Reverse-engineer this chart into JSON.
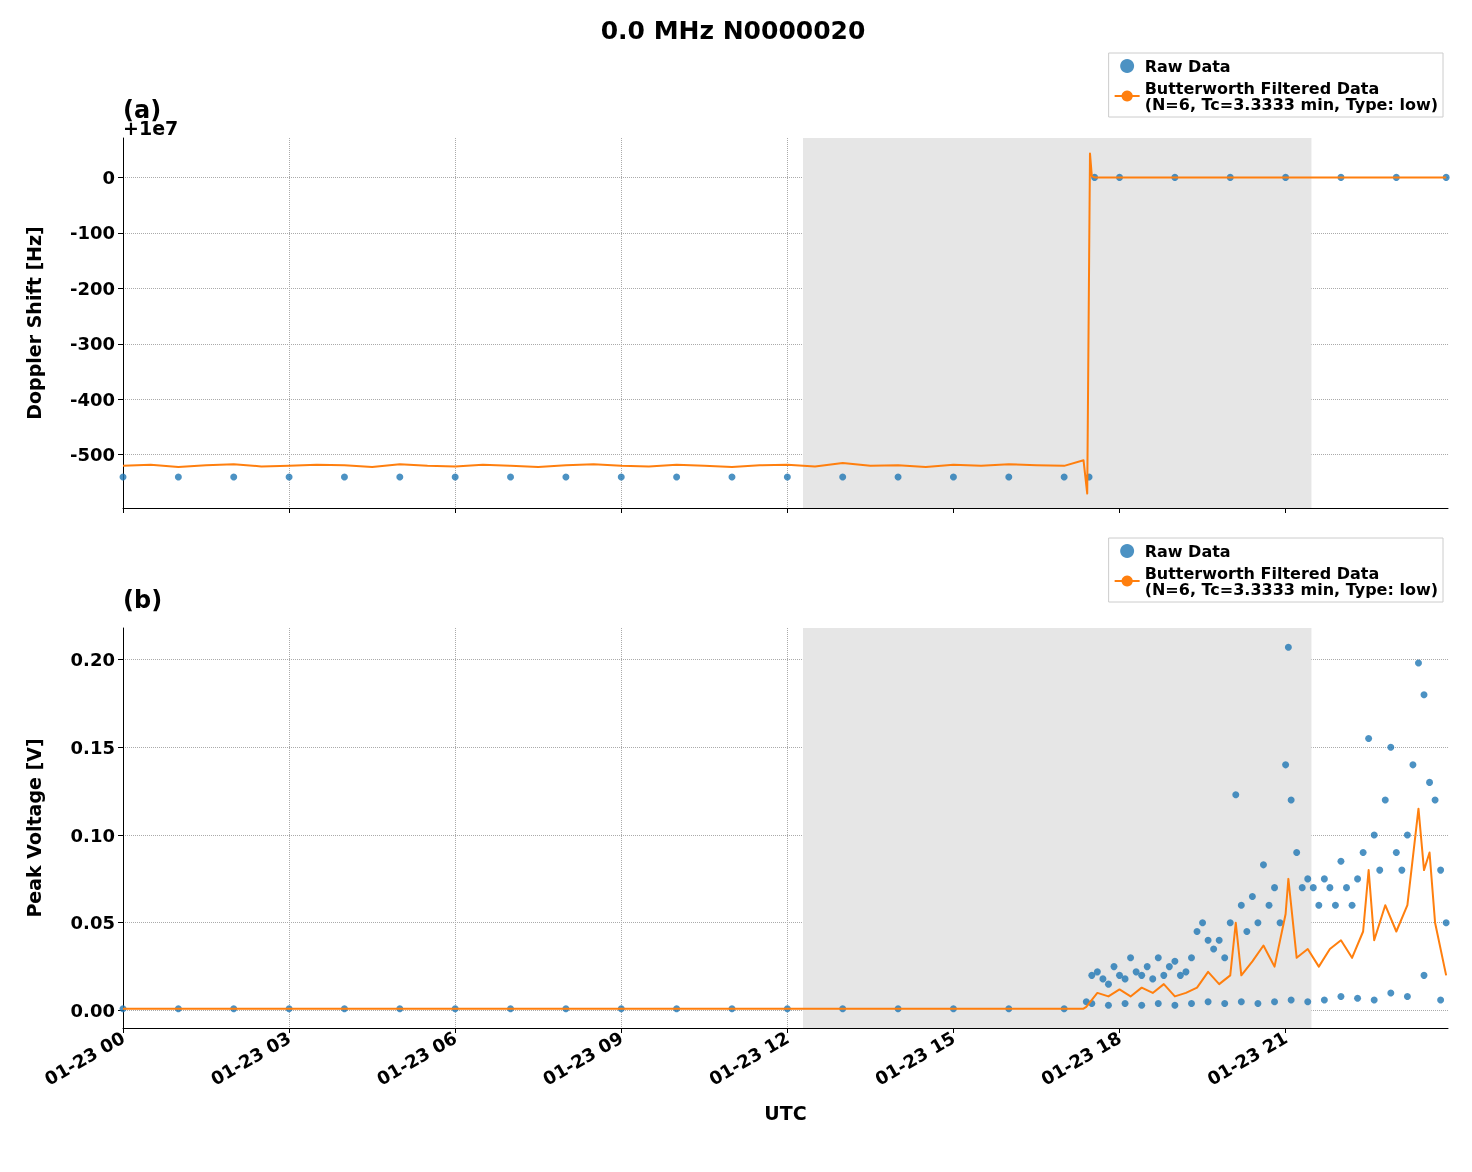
{
  "chart_data": [
    {
      "type": "scatter",
      "title": "0.0 MHz N0000020",
      "subtitle": "(a)",
      "ylabel": "Doppler Shift [Hz]",
      "annotations": [
        "+1e7"
      ],
      "xlim": [
        "--01-23T00:00",
        "--01-23T23:56"
      ],
      "xticks": [
        {
          "value": "--01-23T00:00",
          "label": "01-23 00"
        },
        {
          "value": "--01-23T03:00",
          "label": "01-23 03"
        },
        {
          "value": "--01-23T06:00",
          "label": "01-23 06"
        },
        {
          "value": "--01-23T09:00",
          "label": "01-23 09"
        },
        {
          "value": "--01-23T12:00",
          "label": "01-23 12"
        },
        {
          "value": "--01-23T15:00",
          "label": "01-23 15"
        },
        {
          "value": "--01-23T18:00",
          "label": "01-23 18"
        },
        {
          "value": "--01-23T21:00",
          "label": "01-23 21"
        }
      ],
      "ylim": [
        -596,
        71
      ],
      "yticks": [
        -500,
        -400,
        -300,
        -200,
        -100,
        0
      ],
      "tick_labels": "y",
      "grid": true,
      "legend": "top right",
      "bands": [
        {
          "axis": "x",
          "from": "--01-23T12:17",
          "to": "--01-23T21:28",
          "color": "#e6e6e6"
        }
      ],
      "series": [
        {
          "name": "Raw Data",
          "color": "#1f77b4",
          "marker": "circle",
          "x": [
            "--01-23T00:00",
            "--01-23T01:00",
            "--01-23T02:00",
            "--01-23T03:00",
            "--01-23T04:00",
            "--01-23T05:00",
            "--01-23T06:00",
            "--01-23T07:00",
            "--01-23T08:00",
            "--01-23T09:00",
            "--01-23T10:00",
            "--01-23T11:00",
            "--01-23T12:00",
            "--01-23T13:00",
            "--01-23T14:00",
            "--01-23T15:00",
            "--01-23T16:00",
            "--01-23T17:00",
            "--01-23T17:27",
            "--01-23T17:33",
            "--01-23T18:00",
            "--01-23T19:00",
            "--01-23T20:00",
            "--01-23T21:00",
            "--01-23T22:00",
            "--01-23T23:00",
            "--01-23T23:54"
          ],
          "values": [
            -540,
            -540,
            -540,
            -540,
            -540,
            -540,
            -540,
            -540,
            -540,
            -540,
            -540,
            -540,
            -540,
            -540,
            -540,
            -540,
            -540,
            -540,
            -540,
            0,
            0,
            0,
            0,
            0,
            0,
            0,
            0
          ]
        },
        {
          "name": "Butterworth Filtered Data\n(N=6, Tc=3.3333 min, Type: low)",
          "type": "line",
          "color": "#ff7f0e",
          "x": [
            "--01-23T00:00",
            "--01-23T00:30",
            "--01-23T01:00",
            "--01-23T01:30",
            "--01-23T02:00",
            "--01-23T02:30",
            "--01-23T03:00",
            "--01-23T03:30",
            "--01-23T04:00",
            "--01-23T04:30",
            "--01-23T05:00",
            "--01-23T05:30",
            "--01-23T06:00",
            "--01-23T06:30",
            "--01-23T07:00",
            "--01-23T07:30",
            "--01-23T08:00",
            "--01-23T08:30",
            "--01-23T09:00",
            "--01-23T09:30",
            "--01-23T10:00",
            "--01-23T10:30",
            "--01-23T11:00",
            "--01-23T11:30",
            "--01-23T12:00",
            "--01-23T12:30",
            "--01-23T13:00",
            "--01-23T13:30",
            "--01-23T14:00",
            "--01-23T14:30",
            "--01-23T15:00",
            "--01-23T15:30",
            "--01-23T16:00",
            "--01-23T16:30",
            "--01-23T17:00",
            "--01-23T17:21",
            "--01-23T17:25",
            "--01-23T17:28",
            "--01-23T17:30",
            "--01-23T17:33",
            "--01-23T18:00",
            "--01-23T19:00",
            "--01-23T20:00",
            "--01-23T21:00",
            "--01-23T22:00",
            "--01-23T23:00",
            "--01-23T23:54"
          ],
          "values": [
            -520,
            -518,
            -522,
            -519,
            -517,
            -521,
            -520,
            -518,
            -519,
            -522,
            -517,
            -520,
            -521,
            -518,
            -520,
            -522,
            -519,
            -517,
            -520,
            -521,
            -518,
            -520,
            -522,
            -519,
            -518,
            -521,
            -515,
            -520,
            -519,
            -522,
            -518,
            -520,
            -517,
            -519,
            -520,
            -510,
            -570,
            43,
            2,
            0,
            0,
            0,
            0,
            0,
            0,
            0,
            0
          ]
        }
      ]
    },
    {
      "type": "scatter",
      "subtitle": "(b)",
      "xlabel": "UTC",
      "ylabel": "Peak Voltage [V]",
      "xlim": [
        "--01-23T00:00",
        "--01-23T23:56"
      ],
      "xticks": [
        {
          "value": "--01-23T00:00",
          "label": "01-23 00"
        },
        {
          "value": "--01-23T03:00",
          "label": "01-23 03"
        },
        {
          "value": "--01-23T06:00",
          "label": "01-23 06"
        },
        {
          "value": "--01-23T09:00",
          "label": "01-23 09"
        },
        {
          "value": "--01-23T12:00",
          "label": "01-23 12"
        },
        {
          "value": "--01-23T15:00",
          "label": "01-23 15"
        },
        {
          "value": "--01-23T18:00",
          "label": "01-23 18"
        },
        {
          "value": "--01-23T21:00",
          "label": "01-23 21"
        }
      ],
      "ylim": [
        -0.01,
        0.218
      ],
      "yticks": [
        {
          "value": 0,
          "label": "0.00"
        },
        {
          "value": 0.05,
          "label": "0.05"
        },
        {
          "value": 0.1,
          "label": "0.10"
        },
        {
          "value": 0.15,
          "label": "0.15"
        },
        {
          "value": 0.2,
          "label": "0.20"
        }
      ],
      "grid": true,
      "legend": "top right",
      "bands": [
        {
          "axis": "x",
          "from": "--01-23T12:17",
          "to": "--01-23T21:28",
          "color": "#e6e6e6"
        }
      ],
      "series": [
        {
          "name": "Raw Data",
          "color": "#1f77b4",
          "marker": "circle",
          "x": [
            "--01-23T00:00",
            "--01-23T01:00",
            "--01-23T02:00",
            "--01-23T03:00",
            "--01-23T04:00",
            "--01-23T05:00",
            "--01-23T06:00",
            "--01-23T07:00",
            "--01-23T08:00",
            "--01-23T09:00",
            "--01-23T10:00",
            "--01-23T11:00",
            "--01-23T12:00",
            "--01-23T13:00",
            "--01-23T14:00",
            "--01-23T15:00",
            "--01-23T16:00",
            "--01-23T17:00",
            "--01-23T17:24",
            "--01-23T17:30",
            "--01-23T17:36",
            "--01-23T17:42",
            "--01-23T17:48",
            "--01-23T17:54",
            "--01-23T18:00",
            "--01-23T18:06",
            "--01-23T18:12",
            "--01-23T18:18",
            "--01-23T18:24",
            "--01-23T18:30",
            "--01-23T18:36",
            "--01-23T18:42",
            "--01-23T18:48",
            "--01-23T18:54",
            "--01-23T19:00",
            "--01-23T19:06",
            "--01-23T19:12",
            "--01-23T19:18",
            "--01-23T19:24",
            "--01-23T19:30",
            "--01-23T19:36",
            "--01-23T19:42",
            "--01-23T19:48",
            "--01-23T19:54",
            "--01-23T20:00",
            "--01-23T20:06",
            "--01-23T20:12",
            "--01-23T20:18",
            "--01-23T20:24",
            "--01-23T20:30",
            "--01-23T20:36",
            "--01-23T20:42",
            "--01-23T20:48",
            "--01-23T20:54",
            "--01-23T21:00",
            "--01-23T21:03",
            "--01-23T21:06",
            "--01-23T21:12",
            "--01-23T21:18",
            "--01-23T21:24",
            "--01-23T21:30",
            "--01-23T21:36",
            "--01-23T21:42",
            "--01-23T21:48",
            "--01-23T21:54",
            "--01-23T22:00",
            "--01-23T22:06",
            "--01-23T22:12",
            "--01-23T22:18",
            "--01-23T22:24",
            "--01-23T22:30",
            "--01-23T22:36",
            "--01-23T22:42",
            "--01-23T22:48",
            "--01-23T22:54",
            "--01-23T23:00",
            "--01-23T23:06",
            "--01-23T23:12",
            "--01-23T23:18",
            "--01-23T23:24",
            "--01-23T23:30",
            "--01-23T23:36",
            "--01-23T23:42",
            "--01-23T23:48",
            "--01-23T23:54",
            "--01-23T17:30",
            "--01-23T17:48",
            "--01-23T18:06",
            "--01-23T18:24",
            "--01-23T18:42",
            "--01-23T19:00",
            "--01-23T19:18",
            "--01-23T19:36",
            "--01-23T19:54",
            "--01-23T20:12",
            "--01-23T20:30",
            "--01-23T20:48",
            "--01-23T21:06",
            "--01-23T21:24",
            "--01-23T21:42",
            "--01-23T22:00",
            "--01-23T22:18",
            "--01-23T22:36",
            "--01-23T22:54",
            "--01-23T23:12",
            "--01-23T23:30",
            "--01-23T23:48"
          ],
          "values": [
            0.001,
            0.001,
            0.001,
            0.001,
            0.001,
            0.001,
            0.001,
            0.001,
            0.001,
            0.001,
            0.001,
            0.001,
            0.001,
            0.001,
            0.001,
            0.001,
            0.001,
            0.001,
            0.005,
            0.02,
            0.022,
            0.018,
            0.015,
            0.025,
            0.02,
            0.018,
            0.03,
            0.022,
            0.02,
            0.025,
            0.018,
            0.03,
            0.02,
            0.025,
            0.028,
            0.02,
            0.022,
            0.03,
            0.045,
            0.05,
            0.04,
            0.035,
            0.04,
            0.03,
            0.05,
            0.123,
            0.06,
            0.045,
            0.065,
            0.05,
            0.083,
            0.06,
            0.07,
            0.05,
            0.14,
            0.207,
            0.12,
            0.09,
            0.07,
            0.075,
            0.07,
            0.06,
            0.075,
            0.07,
            0.06,
            0.085,
            0.07,
            0.06,
            0.075,
            0.09,
            0.155,
            0.1,
            0.08,
            0.12,
            0.15,
            0.09,
            0.08,
            0.1,
            0.14,
            0.198,
            0.18,
            0.13,
            0.12,
            0.08,
            0.05,
            0.004,
            0.003,
            0.004,
            0.003,
            0.004,
            0.003,
            0.004,
            0.005,
            0.004,
            0.005,
            0.004,
            0.005,
            0.006,
            0.005,
            0.006,
            0.008,
            0.007,
            0.006,
            0.01,
            0.008,
            0.02,
            0.006
          ]
        },
        {
          "name": "Butterworth Filtered Data\n(N=6, Tc=3.3333 min, Type: low)",
          "type": "line",
          "color": "#ff7f0e",
          "x": [
            "--01-23T00:00",
            "--01-23T03:00",
            "--01-23T06:00",
            "--01-23T09:00",
            "--01-23T12:00",
            "--01-23T15:00",
            "--01-23T17:21",
            "--01-23T17:24",
            "--01-23T17:30",
            "--01-23T17:36",
            "--01-23T17:48",
            "--01-23T18:00",
            "--01-23T18:12",
            "--01-23T18:24",
            "--01-23T18:36",
            "--01-23T18:48",
            "--01-23T19:00",
            "--01-23T19:12",
            "--01-23T19:24",
            "--01-23T19:36",
            "--01-23T19:48",
            "--01-23T20:00",
            "--01-23T20:06",
            "--01-23T20:12",
            "--01-23T20:24",
            "--01-23T20:36",
            "--01-23T20:48",
            "--01-23T21:00",
            "--01-23T21:03",
            "--01-23T21:12",
            "--01-23T21:24",
            "--01-23T21:36",
            "--01-23T21:48",
            "--01-23T22:00",
            "--01-23T22:12",
            "--01-23T22:24",
            "--01-23T22:30",
            "--01-23T22:36",
            "--01-23T22:48",
            "--01-23T23:00",
            "--01-23T23:12",
            "--01-23T23:24",
            "--01-23T23:30",
            "--01-23T23:36",
            "--01-23T23:42",
            "--01-23T23:54"
          ],
          "values": [
            0.001,
            0.001,
            0.001,
            0.001,
            0.001,
            0.001,
            0.001,
            0.002,
            0.006,
            0.01,
            0.008,
            0.012,
            0.008,
            0.013,
            0.01,
            0.015,
            0.008,
            0.01,
            0.013,
            0.022,
            0.015,
            0.02,
            0.05,
            0.02,
            0.028,
            0.037,
            0.025,
            0.055,
            0.075,
            0.03,
            0.035,
            0.025,
            0.035,
            0.04,
            0.03,
            0.045,
            0.08,
            0.04,
            0.06,
            0.045,
            0.06,
            0.115,
            0.08,
            0.09,
            0.05,
            0.02
          ]
        }
      ]
    }
  ]
}
